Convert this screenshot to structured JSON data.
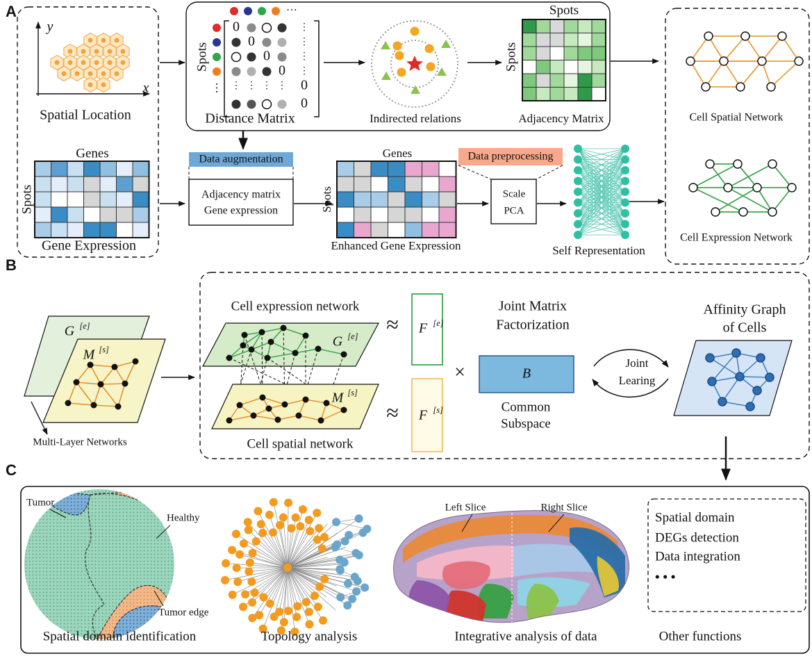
{
  "panel_a": {
    "label": "A",
    "spatial_location": {
      "y_axis": "y",
      "x_axis": "x",
      "caption": "Spatial Location"
    },
    "gene_expression": {
      "genes": "Genes",
      "spots": "Spots",
      "caption": "Gene Expression"
    },
    "distance_matrix": {
      "spots": "Spots",
      "zero": "0",
      "h_ellipsis": "···",
      "v_ellipsis": "⋮",
      "caption": "Distance Matrix"
    },
    "indirected_relations": {
      "caption": "Indirected relations"
    },
    "adjacency_matrix": {
      "spots_top": "Spots",
      "spots_side": "Spots",
      "caption": "Adjacency Matrix"
    },
    "data_augmentation": {
      "title": "Data augmentation",
      "lines": [
        "Adjacency matrix",
        "Gene expression"
      ]
    },
    "enhanced_expression": {
      "genes": "Genes",
      "spots": "Spots",
      "caption": "Enhanced Gene Expression"
    },
    "data_preprocessing": {
      "title": "Data preprocessing",
      "lines": [
        "Scale",
        "PCA"
      ]
    },
    "self_representation": {
      "caption": "Self Representation"
    },
    "cell_spatial_network": {
      "caption": "Cell Spatial Network"
    },
    "cell_expression_network": {
      "caption": "Cell Expression Network"
    }
  },
  "panel_b": {
    "label": "B",
    "multi_layer": {
      "g": "G",
      "g_sup": "[e]",
      "m": "M",
      "m_sup": "[s]",
      "caption": "Multi-Layer Networks"
    },
    "expression_network": {
      "title": "Cell expression network",
      "g": "G",
      "g_sup": "[e]"
    },
    "spatial_network": {
      "title": "Cell spatial network",
      "m": "M",
      "m_sup": "[s]"
    },
    "approx": "≈",
    "f_e": {
      "f": "F",
      "sup": "[e]"
    },
    "f_s": {
      "f": "F",
      "sup": "[s]"
    },
    "times": "×",
    "factorization": [
      "Joint Matrix",
      "Factorization"
    ],
    "b": "B",
    "subspace": [
      "Common",
      "Subspace"
    ],
    "joint_learning": [
      "Joint",
      "Learing"
    ],
    "affinity": [
      "Affinity Graph",
      "of Cells"
    ]
  },
  "panel_c": {
    "label": "C",
    "spatial_domain": {
      "tumor": "Tumor",
      "healthy": "Healthy",
      "tumor_edge": "Tumor edge",
      "caption": "Spatial domain identification"
    },
    "topology": {
      "caption": "Topology analysis"
    },
    "integrative": {
      "left": "Left Slice",
      "right": "Right Slice",
      "caption": "Integrative analysis of data"
    },
    "other": {
      "items": [
        "Spatial domain",
        "DEGs detection",
        "Data integration",
        "• • •"
      ],
      "caption": "Other functions"
    }
  }
}
